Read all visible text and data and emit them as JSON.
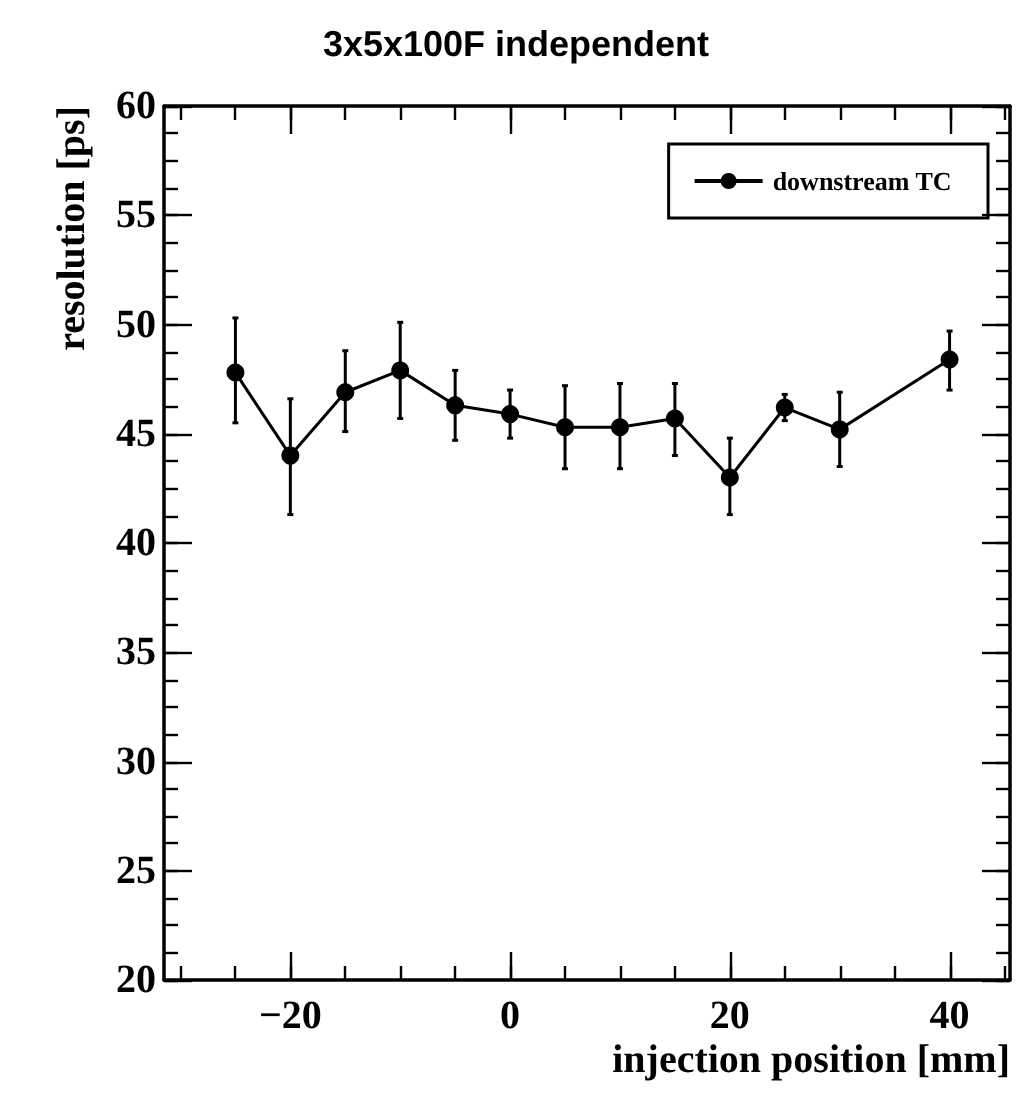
{
  "chart_data": {
    "type": "line",
    "title": "3x5x100F independent",
    "xlabel": "injection position [mm]",
    "ylabel": "resolution [ps]",
    "x": [
      -25,
      -20,
      -15,
      -10,
      -5,
      0,
      5,
      10,
      15,
      20,
      25,
      30,
      40
    ],
    "series": [
      {
        "name": "downstream TC",
        "color": "#000000",
        "values": [
          47.8,
          44.0,
          46.9,
          47.9,
          46.3,
          45.9,
          45.3,
          45.3,
          45.7,
          43.0,
          46.2,
          45.2,
          48.4
        ],
        "errors": [
          [
            45.5,
            50.3
          ],
          [
            41.3,
            46.6
          ],
          [
            45.1,
            48.8
          ],
          [
            45.7,
            50.1
          ],
          [
            44.7,
            47.9
          ],
          [
            44.8,
            47.0
          ],
          [
            43.4,
            47.2
          ],
          [
            43.4,
            47.3
          ],
          [
            44.0,
            47.3
          ],
          [
            41.3,
            44.8
          ],
          [
            45.6,
            46.8
          ],
          [
            43.5,
            46.9
          ],
          [
            47.0,
            49.7
          ]
        ]
      }
    ],
    "xlim": [
      -31.5,
      45.5
    ],
    "xticks": [
      -20,
      0,
      20,
      40
    ],
    "ylim": [
      20,
      60
    ],
    "yticks": [
      20,
      25,
      30,
      35,
      40,
      45,
      50,
      55,
      60
    ],
    "legend": "top right",
    "marker": "circle",
    "line_style": "solid",
    "grid": false
  }
}
